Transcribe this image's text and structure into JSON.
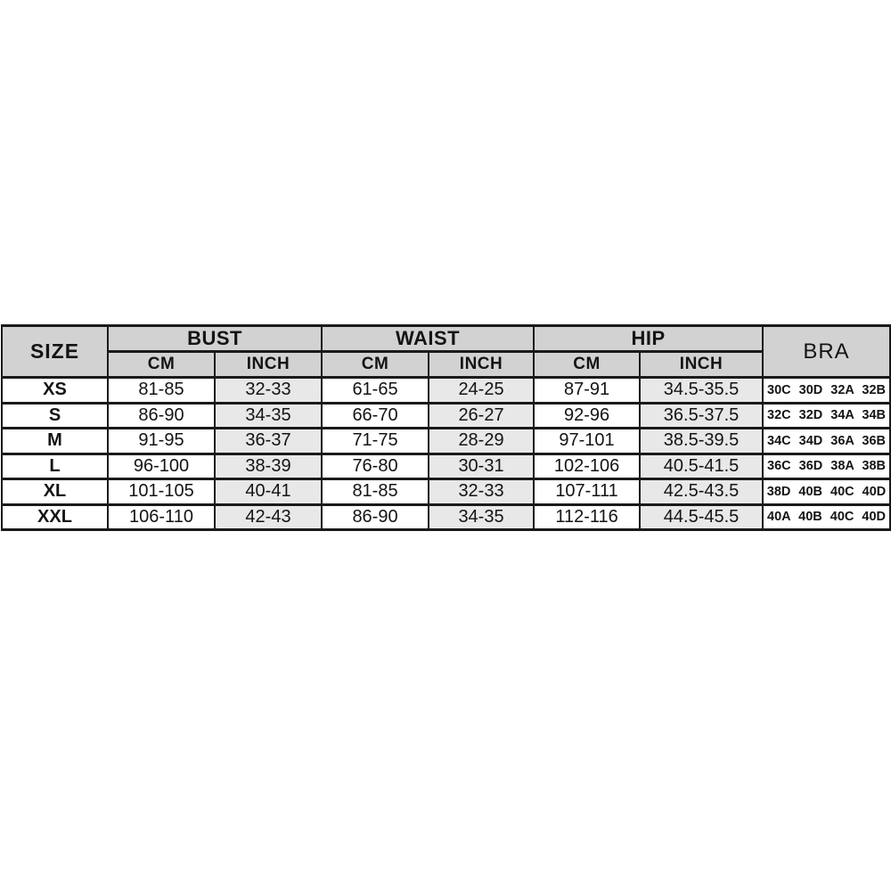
{
  "page": {
    "background": "#ffffff"
  },
  "table": {
    "title": "size-chart",
    "colors": {
      "header_bg": "#d2d2d2",
      "inch_column_bg": "#e8e8e8",
      "row_bg": "#ffffff",
      "border": "#1a1a1a",
      "text": "#141414"
    },
    "headers": {
      "size": "SIZE",
      "bust": "BUST",
      "waist": "WAIST",
      "hip": "HIP",
      "bra": "BRA",
      "cm": "CM",
      "inch": "INCH"
    },
    "rows": [
      {
        "size": "XS",
        "bust_cm": "81-85",
        "bust_inch": "32-33",
        "waist_cm": "61-65",
        "waist_inch": "24-25",
        "hip_cm": "87-91",
        "hip_inch": "34.5-35.5",
        "bra": "30C 30D 32A 32B"
      },
      {
        "size": "S",
        "bust_cm": "86-90",
        "bust_inch": "34-35",
        "waist_cm": "66-70",
        "waist_inch": "26-27",
        "hip_cm": "92-96",
        "hip_inch": "36.5-37.5",
        "bra": "32C 32D 34A 34B"
      },
      {
        "size": "M",
        "bust_cm": "91-95",
        "bust_inch": "36-37",
        "waist_cm": "71-75",
        "waist_inch": "28-29",
        "hip_cm": "97-101",
        "hip_inch": "38.5-39.5",
        "bra": "34C 34D 36A 36B"
      },
      {
        "size": "L",
        "bust_cm": "96-100",
        "bust_inch": "38-39",
        "waist_cm": "76-80",
        "waist_inch": "30-31",
        "hip_cm": "102-106",
        "hip_inch": "40.5-41.5",
        "bra": "36C 36D 38A 38B"
      },
      {
        "size": "XL",
        "bust_cm": "101-105",
        "bust_inch": "40-41",
        "waist_cm": "81-85",
        "waist_inch": "32-33",
        "hip_cm": "107-111",
        "hip_inch": "42.5-43.5",
        "bra": "38D 40B 40C 40D"
      },
      {
        "size": "XXL",
        "bust_cm": "106-110",
        "bust_inch": "42-43",
        "waist_cm": "86-90",
        "waist_inch": "34-35",
        "hip_cm": "112-116",
        "hip_inch": "44.5-45.5",
        "bra": "40A 40B 40C 40D"
      }
    ]
  },
  "chart_data": {
    "type": "table",
    "title": "Garment size chart",
    "columns": [
      "SIZE",
      "BUST CM",
      "BUST INCH",
      "WAIST CM",
      "WAIST INCH",
      "HIP CM",
      "HIP INCH",
      "BRA"
    ],
    "rows": [
      [
        "XS",
        "81-85",
        "32-33",
        "61-65",
        "24-25",
        "87-91",
        "34.5-35.5",
        "30C 30D 32A 32B"
      ],
      [
        "S",
        "86-90",
        "34-35",
        "66-70",
        "26-27",
        "92-96",
        "36.5-37.5",
        "32C 32D 34A 34B"
      ],
      [
        "M",
        "91-95",
        "36-37",
        "71-75",
        "28-29",
        "97-101",
        "38.5-39.5",
        "34C 34D 36A 36B"
      ],
      [
        "L",
        "96-100",
        "38-39",
        "76-80",
        "30-31",
        "102-106",
        "40.5-41.5",
        "36C 36D 38A 38B"
      ],
      [
        "XL",
        "101-105",
        "40-41",
        "81-85",
        "32-33",
        "107-111",
        "42.5-43.5",
        "38D 40B 40C 40D"
      ],
      [
        "XXL",
        "106-110",
        "42-43",
        "86-90",
        "34-35",
        "112-116",
        "44.5-45.5",
        "40A 40B 40C 40D"
      ]
    ]
  }
}
